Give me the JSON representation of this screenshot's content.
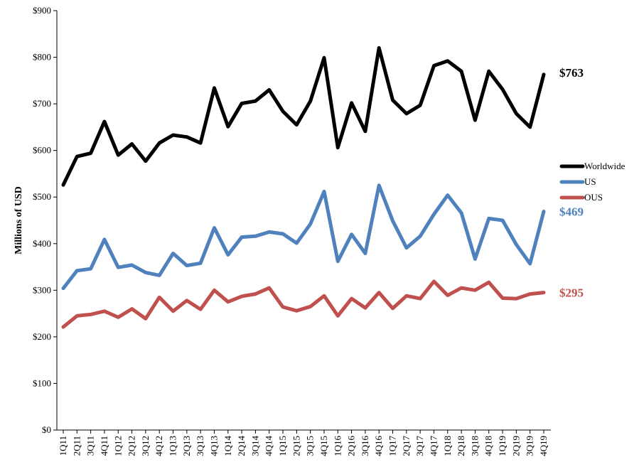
{
  "chart_data": {
    "type": "line",
    "ylabel": "Millions of USD",
    "ylim": [
      0,
      900
    ],
    "yticks": [
      0,
      100,
      200,
      300,
      400,
      500,
      600,
      700,
      800,
      900
    ],
    "ytick_labels": [
      "$0",
      "$100",
      "$200",
      "$300",
      "$400",
      "$500",
      "$600",
      "$700",
      "$800",
      "$900"
    ],
    "grid": false,
    "legend_position": "right",
    "categories": [
      "1Q11",
      "2Q11",
      "3Q11",
      "4Q11",
      "1Q12",
      "2Q12",
      "3Q12",
      "4Q12",
      "1Q13",
      "2Q13",
      "3Q13",
      "4Q13",
      "1Q14",
      "2Q14",
      "3Q14",
      "4Q14",
      "1Q15",
      "2Q15",
      "3Q15",
      "4Q15",
      "1Q16",
      "2Q16",
      "3Q16",
      "4Q16",
      "1Q17",
      "2Q17",
      "3Q17",
      "4Q17",
      "1Q18",
      "2Q18",
      "3Q18",
      "4Q18",
      "1Q19",
      "2Q19",
      "3Q19",
      "4Q19"
    ],
    "series": [
      {
        "name": "Worldwide",
        "color": "#000000",
        "end_label": "$763",
        "values": [
          526,
          587,
          594,
          662,
          590,
          614,
          577,
          616,
          633,
          629,
          616,
          734,
          651,
          701,
          706,
          730,
          684,
          655,
          706,
          799,
          606,
          702,
          641,
          820,
          708,
          679,
          697,
          782,
          792,
          770,
          665,
          770,
          731,
          679,
          650,
          763
        ]
      },
      {
        "name": "US",
        "color": "#4f81bd",
        "end_label": "$469",
        "values": [
          304,
          342,
          346,
          409,
          349,
          354,
          338,
          332,
          379,
          353,
          358,
          434,
          376,
          414,
          416,
          425,
          421,
          401,
          442,
          512,
          362,
          420,
          379,
          525,
          449,
          391,
          416,
          463,
          504,
          466,
          367,
          454,
          450,
          398,
          357,
          469
        ]
      },
      {
        "name": "OUS",
        "color": "#c0504d",
        "end_label": "$295",
        "values": [
          221,
          245,
          248,
          255,
          242,
          260,
          239,
          285,
          255,
          278,
          259,
          300,
          275,
          287,
          292,
          305,
          264,
          256,
          265,
          288,
          245,
          282,
          262,
          295,
          261,
          288,
          282,
          319,
          289,
          305,
          300,
          317,
          283,
          282,
          292,
          295
        ]
      }
    ]
  }
}
